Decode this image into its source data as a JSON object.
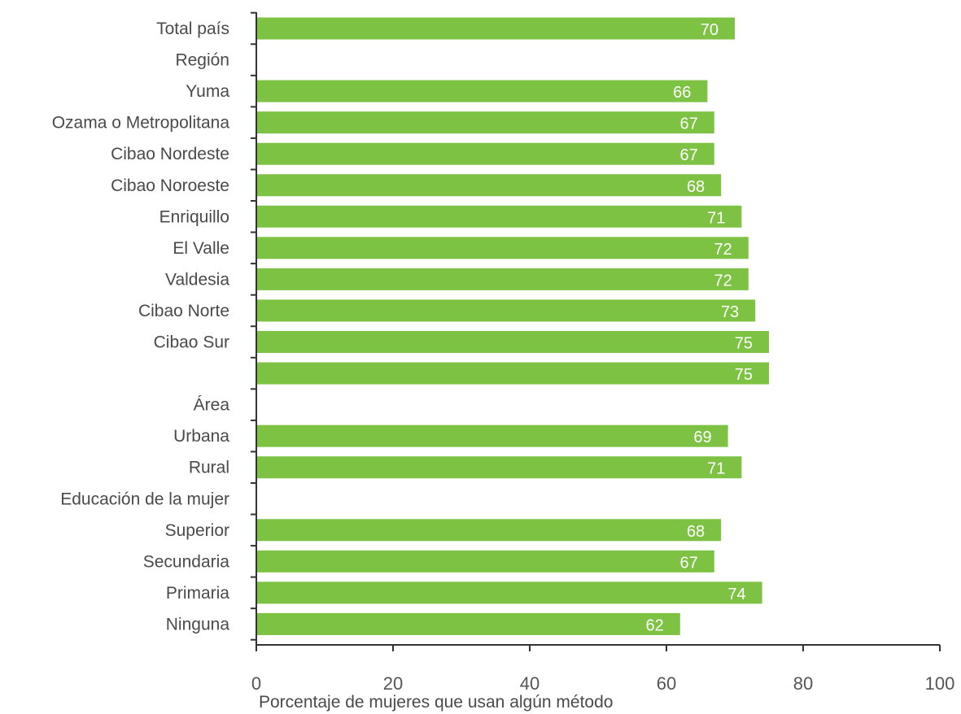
{
  "chart_data": {
    "type": "bar",
    "orientation": "horizontal",
    "categories": [
      "Total país",
      "Región",
      "Yuma",
      "Ozama o Metropolitana",
      "Cibao Nordeste",
      "Cibao Noroeste",
      "Enriquillo",
      "El Valle",
      "Valdesia",
      "Cibao Norte",
      "Cibao Sur",
      "",
      "Área",
      "Urbana",
      "Rural",
      "Educación de la mujer",
      "Superior",
      "Secundaria",
      "Primaria",
      "Ninguna"
    ],
    "values": [
      70,
      null,
      66,
      67,
      67,
      68,
      71,
      72,
      72,
      73,
      75,
      75,
      null,
      69,
      71,
      null,
      68,
      67,
      74,
      62
    ],
    "data_labels": [
      "70",
      "",
      "66",
      "67",
      "67",
      "68",
      "71",
      "72",
      "72",
      "73",
      "75",
      "75",
      "",
      "69",
      "71",
      "",
      "68",
      "67",
      "74",
      "62"
    ],
    "xlabel": "Porcentaje de mujeres que usan algún método",
    "ylabel": "",
    "xlim": [
      0,
      100
    ],
    "x_ticks": [
      "0",
      "20",
      "40",
      "60",
      "80",
      "100"
    ],
    "bar_color": "#7dc242",
    "grid": false,
    "legend": "none"
  }
}
